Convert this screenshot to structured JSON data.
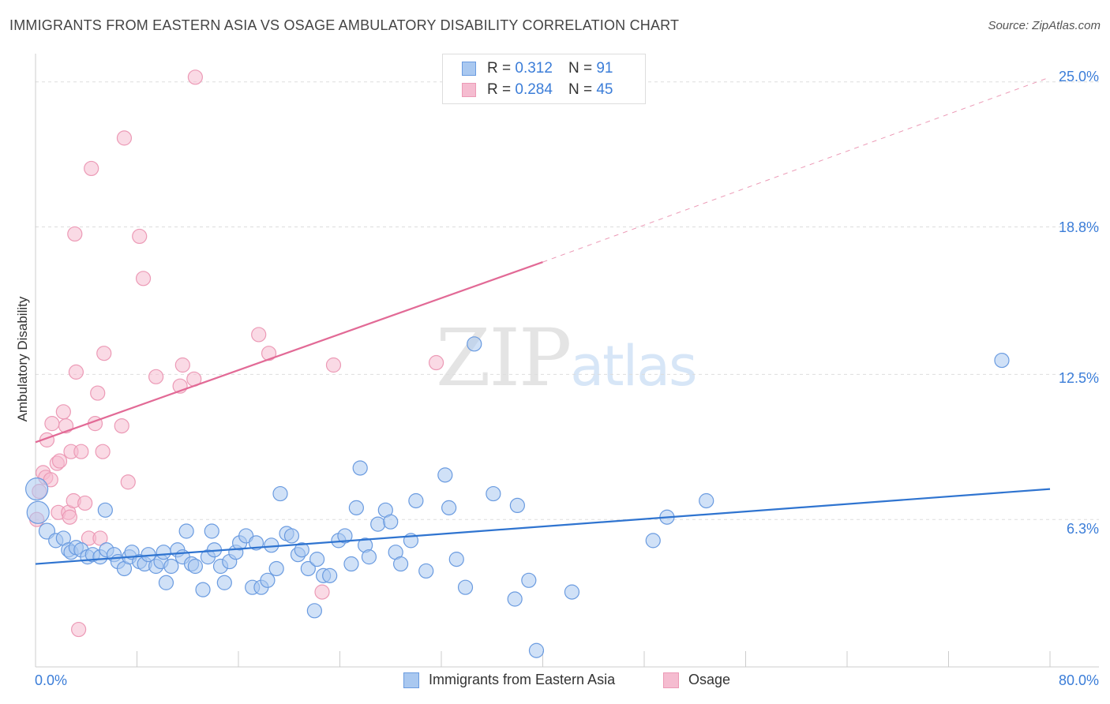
{
  "header": {
    "title": "IMMIGRANTS FROM EASTERN ASIA VS OSAGE AMBULATORY DISABILITY CORRELATION CHART",
    "source": "Source: ZipAtlas.com"
  },
  "watermark": {
    "part1": "ZIP",
    "part2": "atlas"
  },
  "legend_top": {
    "rows": [
      {
        "r_label": "R =",
        "r_value": "0.312",
        "n_label": "N =",
        "n_value": "91"
      },
      {
        "r_label": "R =",
        "r_value": "0.284",
        "n_label": "N =",
        "n_value": "45"
      }
    ]
  },
  "legend_bottom": {
    "series1": "Immigrants from Eastern Asia",
    "series2": "Osage"
  },
  "colors": {
    "blue_fill": "#a9c8f0",
    "blue_stroke": "#6a9be0",
    "blue_line": "#2f74d0",
    "pink_fill": "#f5bcd0",
    "pink_stroke": "#ec9ab6",
    "pink_line": "#e26a96",
    "tick_text": "#3b7dd8",
    "grid": "#dddddd"
  },
  "chart_data": {
    "type": "scatter",
    "title": "IMMIGRANTS FROM EASTERN ASIA VS OSAGE AMBULATORY DISABILITY CORRELATION CHART",
    "xlabel": "",
    "ylabel": "Ambulatory Disability",
    "xlim": [
      0,
      80
    ],
    "ylim": [
      0,
      25.8
    ],
    "x_tick_labels": [
      "0.0%",
      "80.0%"
    ],
    "y_ticks": [
      6.3,
      12.5,
      18.8,
      25.0
    ],
    "y_tick_labels": [
      "6.3%",
      "12.5%",
      "18.8%",
      "25.0%"
    ],
    "grid": "horizontal dashed",
    "legend_placement": "top-center",
    "series": [
      {
        "name": "Immigrants from Eastern Asia",
        "R": 0.312,
        "N": 91,
        "trend": {
          "x": [
            0,
            80
          ],
          "y": [
            4.4,
            7.6
          ],
          "style": "solid"
        },
        "points": [
          [
            0.1,
            7.6,
            14
          ],
          [
            0.2,
            6.6,
            14
          ],
          [
            0.9,
            5.8,
            10
          ],
          [
            1.6,
            5.4,
            9
          ],
          [
            2.2,
            5.5,
            9
          ],
          [
            2.6,
            5.0,
            9
          ],
          [
            2.8,
            4.9,
            9
          ],
          [
            3.2,
            5.1,
            9
          ],
          [
            3.6,
            5.0,
            9
          ],
          [
            4.1,
            4.7,
            9
          ],
          [
            4.5,
            4.8,
            9
          ],
          [
            5.1,
            4.7,
            9
          ],
          [
            5.6,
            5.0,
            9
          ],
          [
            5.5,
            6.7,
            9
          ],
          [
            6.2,
            4.8,
            9
          ],
          [
            6.5,
            4.5,
            9
          ],
          [
            7.0,
            4.2,
            9
          ],
          [
            7.4,
            4.7,
            9
          ],
          [
            7.6,
            4.9,
            9
          ],
          [
            8.2,
            4.5,
            9
          ],
          [
            8.6,
            4.4,
            9
          ],
          [
            8.9,
            4.8,
            9
          ],
          [
            9.5,
            4.3,
            9
          ],
          [
            9.9,
            4.5,
            9
          ],
          [
            10.1,
            4.9,
            9
          ],
          [
            10.3,
            3.6,
            9
          ],
          [
            10.7,
            4.3,
            9
          ],
          [
            11.2,
            5.0,
            9
          ],
          [
            11.6,
            4.7,
            9
          ],
          [
            11.9,
            5.8,
            9
          ],
          [
            12.3,
            4.4,
            9
          ],
          [
            12.6,
            4.3,
            9
          ],
          [
            13.2,
            3.3,
            9
          ],
          [
            13.6,
            4.7,
            9
          ],
          [
            13.9,
            5.8,
            9
          ],
          [
            14.1,
            5.0,
            9
          ],
          [
            14.6,
            4.3,
            9
          ],
          [
            14.9,
            3.6,
            9
          ],
          [
            15.3,
            4.5,
            9
          ],
          [
            15.8,
            4.9,
            9
          ],
          [
            16.1,
            5.3,
            9
          ],
          [
            16.6,
            5.6,
            9
          ],
          [
            17.1,
            3.4,
            9
          ],
          [
            17.4,
            5.3,
            9
          ],
          [
            17.8,
            3.4,
            9
          ],
          [
            18.3,
            3.7,
            9
          ],
          [
            18.6,
            5.2,
            9
          ],
          [
            19.0,
            4.2,
            9
          ],
          [
            19.3,
            7.4,
            9
          ],
          [
            19.8,
            5.7,
            9
          ],
          [
            20.2,
            5.6,
            9
          ],
          [
            20.7,
            4.8,
            9
          ],
          [
            21.0,
            5.0,
            9
          ],
          [
            21.5,
            4.2,
            9
          ],
          [
            22.2,
            4.6,
            9
          ],
          [
            22.0,
            2.4,
            9
          ],
          [
            22.7,
            3.9,
            9
          ],
          [
            23.2,
            3.9,
            9
          ],
          [
            23.9,
            5.4,
            9
          ],
          [
            24.4,
            5.6,
            9
          ],
          [
            24.9,
            4.4,
            9
          ],
          [
            25.3,
            6.8,
            9
          ],
          [
            25.6,
            8.5,
            9
          ],
          [
            26.0,
            5.2,
            9
          ],
          [
            26.3,
            4.7,
            9
          ],
          [
            27.0,
            6.1,
            9
          ],
          [
            27.6,
            6.7,
            9
          ],
          [
            28.0,
            6.2,
            9
          ],
          [
            28.4,
            4.9,
            9
          ],
          [
            28.8,
            4.4,
            9
          ],
          [
            29.6,
            5.4,
            9
          ],
          [
            30.0,
            7.1,
            9
          ],
          [
            30.8,
            4.1,
            9
          ],
          [
            32.3,
            8.2,
            9
          ],
          [
            32.6,
            6.8,
            9
          ],
          [
            33.2,
            4.6,
            9
          ],
          [
            33.9,
            3.4,
            9
          ],
          [
            34.6,
            13.8,
            9
          ],
          [
            36.1,
            7.4,
            9
          ],
          [
            37.8,
            2.9,
            9
          ],
          [
            38.0,
            6.9,
            9
          ],
          [
            38.9,
            3.7,
            9
          ],
          [
            39.5,
            0.7,
            9
          ],
          [
            42.3,
            3.2,
            9
          ],
          [
            48.7,
            5.4,
            9
          ],
          [
            49.8,
            6.4,
            9
          ],
          [
            52.9,
            7.1,
            9
          ],
          [
            76.2,
            13.1,
            9
          ]
        ]
      },
      {
        "name": "Osage",
        "R": 0.284,
        "N": 45,
        "trend": {
          "x": [
            0,
            40
          ],
          "y": [
            9.6,
            17.3
          ],
          "style": "solid"
        },
        "trend_extension": {
          "x": [
            40,
            80
          ],
          "y": [
            17.3,
            25.2
          ],
          "style": "dashed"
        },
        "points": [
          [
            0.1,
            6.3,
            9
          ],
          [
            0.3,
            7.5,
            9
          ],
          [
            0.6,
            8.3,
            9
          ],
          [
            0.8,
            8.1,
            9
          ],
          [
            0.9,
            9.7,
            9
          ],
          [
            1.2,
            8.0,
            9
          ],
          [
            1.3,
            10.4,
            9
          ],
          [
            1.7,
            8.7,
            9
          ],
          [
            1.8,
            6.6,
            9
          ],
          [
            1.9,
            8.8,
            9
          ],
          [
            2.2,
            10.9,
            9
          ],
          [
            2.4,
            10.3,
            9
          ],
          [
            2.6,
            6.6,
            9
          ],
          [
            2.7,
            6.4,
            9
          ],
          [
            2.8,
            9.2,
            9
          ],
          [
            3.0,
            7.1,
            9
          ],
          [
            3.1,
            18.5,
            9
          ],
          [
            3.2,
            12.6,
            9
          ],
          [
            3.4,
            1.6,
            9
          ],
          [
            3.6,
            9.2,
            9
          ],
          [
            3.9,
            7.0,
            9
          ],
          [
            4.2,
            5.5,
            9
          ],
          [
            4.4,
            21.3,
            9
          ],
          [
            4.7,
            10.4,
            9
          ],
          [
            4.9,
            11.7,
            9
          ],
          [
            5.1,
            5.5,
            9
          ],
          [
            5.3,
            9.2,
            9
          ],
          [
            5.4,
            13.4,
            9
          ],
          [
            6.8,
            10.3,
            9
          ],
          [
            7.0,
            22.6,
            9
          ],
          [
            7.3,
            7.9,
            9
          ],
          [
            8.2,
            18.4,
            9
          ],
          [
            8.5,
            16.6,
            9
          ],
          [
            9.5,
            12.4,
            9
          ],
          [
            11.4,
            12.0,
            9
          ],
          [
            11.6,
            12.9,
            9
          ],
          [
            12.5,
            12.3,
            9
          ],
          [
            12.6,
            25.2,
            9
          ],
          [
            17.6,
            14.2,
            9
          ],
          [
            18.4,
            13.4,
            9
          ],
          [
            22.6,
            3.2,
            9
          ],
          [
            23.5,
            12.9,
            9
          ],
          [
            31.6,
            13.0,
            9
          ]
        ]
      }
    ]
  }
}
